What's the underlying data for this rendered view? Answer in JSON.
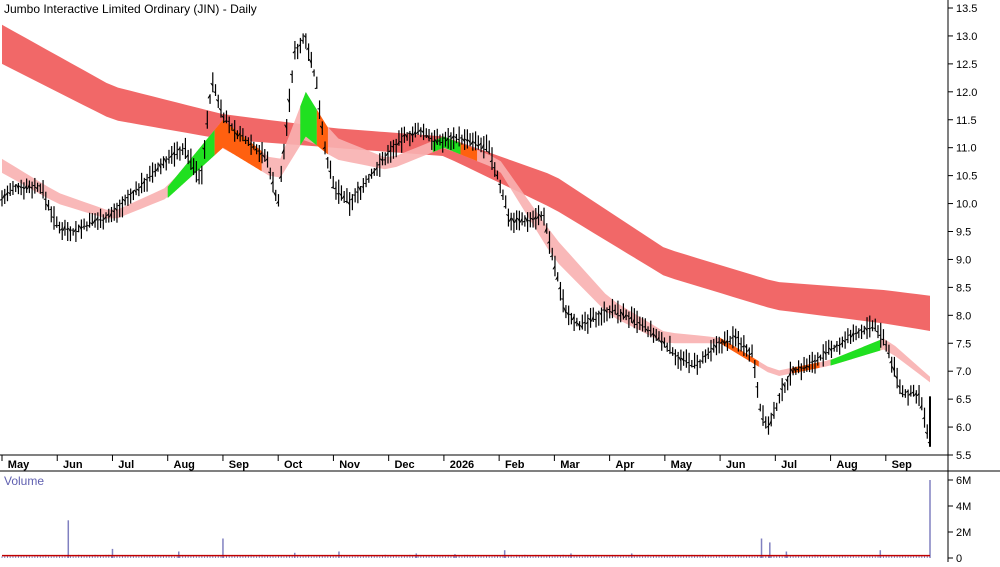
{
  "chart_data": {
    "type": "candlestick",
    "title": "Jumbo Interactive Limited Ordinary (JIN) - Daily",
    "volume_panel_label": "Volume",
    "price_axis": {
      "ylim": [
        5.5,
        13.5
      ],
      "ticks": [
        5.5,
        6.0,
        6.5,
        7.0,
        7.5,
        8.0,
        8.5,
        9.0,
        9.5,
        10.0,
        10.5,
        11.0,
        11.5,
        12.0,
        12.5,
        13.0,
        13.5
      ]
    },
    "volume_axis": {
      "ylim": [
        0,
        6000000
      ],
      "ticks": [
        0,
        2000000,
        4000000,
        6000000
      ],
      "tick_labels": [
        "0",
        "2M",
        "4M",
        "6M"
      ]
    },
    "x_labels": [
      "May",
      "Jun",
      "Jul",
      "Aug",
      "Sep",
      "Oct",
      "Nov",
      "Dec",
      "2026",
      "Feb",
      "Mar",
      "Apr",
      "May",
      "Jun",
      "Jul",
      "Aug",
      "Sep"
    ],
    "x_label_month_index": [
      0,
      1,
      2,
      3,
      4,
      5,
      6,
      7,
      8,
      9,
      10,
      11,
      12,
      13,
      14,
      15,
      16
    ],
    "months_span": 16.8,
    "price_series_month_close": [
      [
        0,
        10.1
      ],
      [
        0.3,
        10.3
      ],
      [
        0.7,
        10.3
      ],
      [
        1.0,
        9.6
      ],
      [
        1.3,
        9.5
      ],
      [
        1.7,
        9.7
      ],
      [
        2.0,
        9.8
      ],
      [
        2.4,
        10.2
      ],
      [
        2.7,
        10.5
      ],
      [
        3.0,
        10.8
      ],
      [
        3.3,
        11.0
      ],
      [
        3.6,
        10.4
      ],
      [
        3.8,
        12.2
      ],
      [
        4.0,
        11.6
      ],
      [
        4.2,
        11.3
      ],
      [
        4.5,
        11.1
      ],
      [
        4.8,
        10.8
      ],
      [
        5.0,
        10.0
      ],
      [
        5.3,
        12.7
      ],
      [
        5.5,
        13.0
      ],
      [
        5.7,
        12.1
      ],
      [
        5.85,
        11.0
      ],
      [
        6.0,
        10.3
      ],
      [
        6.3,
        10.0
      ],
      [
        6.6,
        10.4
      ],
      [
        7.0,
        10.9
      ],
      [
        7.3,
        11.2
      ],
      [
        7.6,
        11.3
      ],
      [
        7.9,
        11.1
      ],
      [
        8.2,
        11.2
      ],
      [
        8.5,
        11.1
      ],
      [
        8.8,
        11.0
      ],
      [
        9.0,
        10.4
      ],
      [
        9.2,
        9.7
      ],
      [
        9.5,
        9.7
      ],
      [
        9.8,
        9.8
      ],
      [
        10.0,
        8.9
      ],
      [
        10.2,
        8.1
      ],
      [
        10.5,
        7.8
      ],
      [
        10.8,
        8.0
      ],
      [
        11.0,
        8.1
      ],
      [
        11.3,
        8.0
      ],
      [
        11.6,
        7.8
      ],
      [
        12.0,
        7.5
      ],
      [
        12.3,
        7.2
      ],
      [
        12.6,
        7.1
      ],
      [
        13.0,
        7.5
      ],
      [
        13.3,
        7.6
      ],
      [
        13.6,
        7.3
      ],
      [
        13.75,
        6.2
      ],
      [
        13.9,
        6.0
      ],
      [
        14.1,
        6.6
      ],
      [
        14.3,
        7.0
      ],
      [
        14.6,
        7.1
      ],
      [
        14.9,
        7.3
      ],
      [
        15.2,
        7.5
      ],
      [
        15.5,
        7.7
      ],
      [
        15.8,
        7.8
      ],
      [
        16.0,
        7.5
      ],
      [
        16.3,
        6.6
      ],
      [
        16.6,
        6.6
      ],
      [
        16.8,
        5.7
      ]
    ],
    "long_term_band": {
      "color": "#f06060",
      "upper_month_value": [
        [
          0,
          13.2
        ],
        [
          2,
          12.1
        ],
        [
          4,
          11.6
        ],
        [
          6,
          11.35
        ],
        [
          8,
          11.2
        ],
        [
          10,
          10.5
        ],
        [
          12,
          9.2
        ],
        [
          14,
          8.6
        ],
        [
          16,
          8.45
        ],
        [
          16.8,
          8.35
        ]
      ],
      "lower_month_value": [
        [
          0,
          12.5
        ],
        [
          2,
          11.5
        ],
        [
          4,
          11.15
        ],
        [
          6,
          11.0
        ],
        [
          8,
          10.85
        ],
        [
          10,
          9.9
        ],
        [
          12,
          8.7
        ],
        [
          14,
          8.1
        ],
        [
          16,
          7.85
        ],
        [
          16.8,
          7.72
        ]
      ]
    },
    "short_term_band": {
      "color": "#f8b0b0",
      "bull_color": "#20e020",
      "bear_color": "#ff6010",
      "upper_month_value": [
        [
          0,
          10.8
        ],
        [
          1,
          10.2
        ],
        [
          2,
          9.85
        ],
        [
          3,
          10.3
        ],
        [
          4,
          11.5
        ],
        [
          5,
          10.7
        ],
        [
          5.5,
          12.0
        ],
        [
          6,
          11.2
        ],
        [
          7,
          10.8
        ],
        [
          8,
          11.2
        ],
        [
          9,
          10.8
        ],
        [
          10,
          9.4
        ],
        [
          11,
          8.3
        ],
        [
          12,
          7.7
        ],
        [
          13,
          7.6
        ],
        [
          14,
          7.0
        ],
        [
          15,
          7.2
        ],
        [
          16,
          7.6
        ],
        [
          16.8,
          6.9
        ]
      ],
      "lower_month_value": [
        [
          0,
          10.55
        ],
        [
          1,
          10.0
        ],
        [
          2,
          9.7
        ],
        [
          3,
          10.1
        ],
        [
          4,
          11.0
        ],
        [
          5,
          10.4
        ],
        [
          5.5,
          11.2
        ],
        [
          6,
          10.8
        ],
        [
          7,
          10.6
        ],
        [
          8,
          11.0
        ],
        [
          9,
          10.6
        ],
        [
          10,
          9.0
        ],
        [
          11,
          8.0
        ],
        [
          12,
          7.5
        ],
        [
          13,
          7.5
        ],
        [
          14,
          6.9
        ],
        [
          15,
          7.1
        ],
        [
          16,
          7.4
        ],
        [
          16.8,
          6.8
        ]
      ]
    },
    "volume_spikes_month_value": [
      [
        1.2,
        2900000
      ],
      [
        2.0,
        700000
      ],
      [
        3.2,
        500000
      ],
      [
        4.0,
        1500000
      ],
      [
        5.3,
        400000
      ],
      [
        6.1,
        500000
      ],
      [
        7.5,
        350000
      ],
      [
        8.2,
        300000
      ],
      [
        9.1,
        600000
      ],
      [
        10.3,
        350000
      ],
      [
        11.4,
        350000
      ],
      [
        13.75,
        1500000
      ],
      [
        13.9,
        1200000
      ],
      [
        14.2,
        500000
      ],
      [
        15.9,
        600000
      ],
      [
        16.8,
        6000000
      ]
    ],
    "volume_baseline": 180000,
    "colors": {
      "up_down_bars": "#000000",
      "volume_bars": "#8080c0",
      "volume_line": "#c00000",
      "grid": "#e8e8e8"
    }
  }
}
